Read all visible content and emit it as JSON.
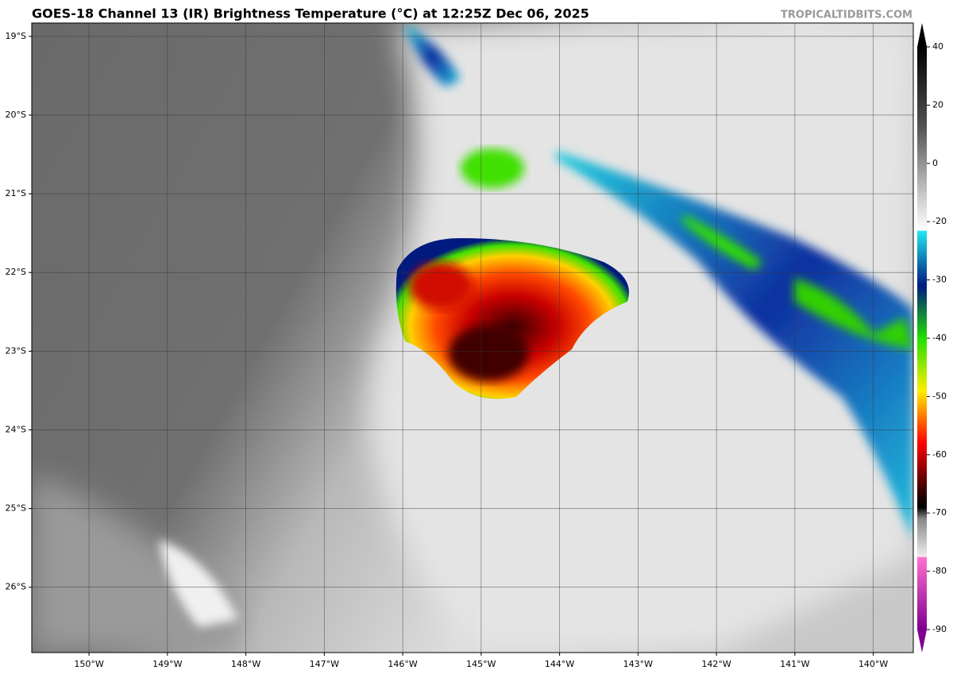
{
  "header": {
    "title": "GOES-18 Channel 13 (IR) Brightness Temperature (°C) at 12:25Z Dec 06, 2025",
    "watermark": "TROPICALTIDBITS.COM"
  },
  "map": {
    "lon_range": [
      -150.73,
      -139.49
    ],
    "lat_range": [
      -18.83,
      -26.83
    ],
    "lon_ticks": [
      {
        "value": -150,
        "label": "150°W"
      },
      {
        "value": -149,
        "label": "149°W"
      },
      {
        "value": -148,
        "label": "148°W"
      },
      {
        "value": -147,
        "label": "147°W"
      },
      {
        "value": -146,
        "label": "146°W"
      },
      {
        "value": -145,
        "label": "145°W"
      },
      {
        "value": -144,
        "label": "144°W"
      },
      {
        "value": -143,
        "label": "143°W"
      },
      {
        "value": -142,
        "label": "142°W"
      },
      {
        "value": -141,
        "label": "141°W"
      },
      {
        "value": -140,
        "label": "140°W"
      }
    ],
    "lat_ticks": [
      {
        "value": -19,
        "label": "19°S"
      },
      {
        "value": -20,
        "label": "20°S"
      },
      {
        "value": -21,
        "label": "21°S"
      },
      {
        "value": -22,
        "label": "22°S"
      },
      {
        "value": -23,
        "label": "23°S"
      },
      {
        "value": -24,
        "label": "24°S"
      },
      {
        "value": -25,
        "label": "25°S"
      },
      {
        "value": -26,
        "label": "26°S"
      }
    ]
  },
  "colorbar": {
    "ticks": [
      40,
      20,
      0,
      -20,
      -30,
      -40,
      -50,
      -60,
      -70,
      -80,
      -90
    ]
  }
}
